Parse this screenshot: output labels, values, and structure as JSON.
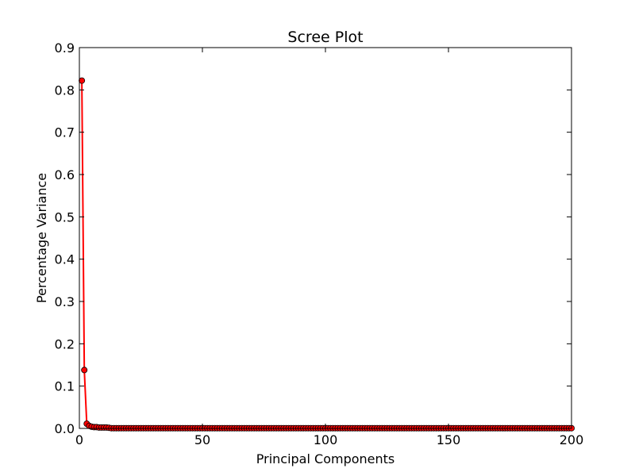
{
  "chart_data": {
    "type": "line",
    "title": "Scree Plot",
    "xlabel": "Principal Components",
    "ylabel": "Percentage Variance",
    "xlim": [
      0,
      200
    ],
    "ylim": [
      0.0,
      0.9
    ],
    "xticks": [
      0,
      50,
      100,
      150,
      200
    ],
    "xtick_labels": [
      "0",
      "50",
      "100",
      "150",
      "200"
    ],
    "yticks": [
      0.0,
      0.1,
      0.2,
      0.3,
      0.4,
      0.5,
      0.6,
      0.7,
      0.8,
      0.9
    ],
    "ytick_labels": [
      "0.0",
      "0.1",
      "0.2",
      "0.3",
      "0.4",
      "0.5",
      "0.6",
      "0.7",
      "0.8",
      "0.9"
    ],
    "grid": false,
    "legend": "none",
    "line_color": "#ff0000",
    "marker_color": "#ff0000",
    "marker_edge_color": "#000000",
    "series": [
      {
        "x_start": 1,
        "x_end": 200,
        "values": [
          0.822,
          0.138,
          0.011,
          0.006,
          0.004,
          0.003,
          0.003,
          0.002,
          0.002,
          0.002,
          0.002,
          0.0015
        ],
        "tail_value": 0.0005
      }
    ]
  }
}
